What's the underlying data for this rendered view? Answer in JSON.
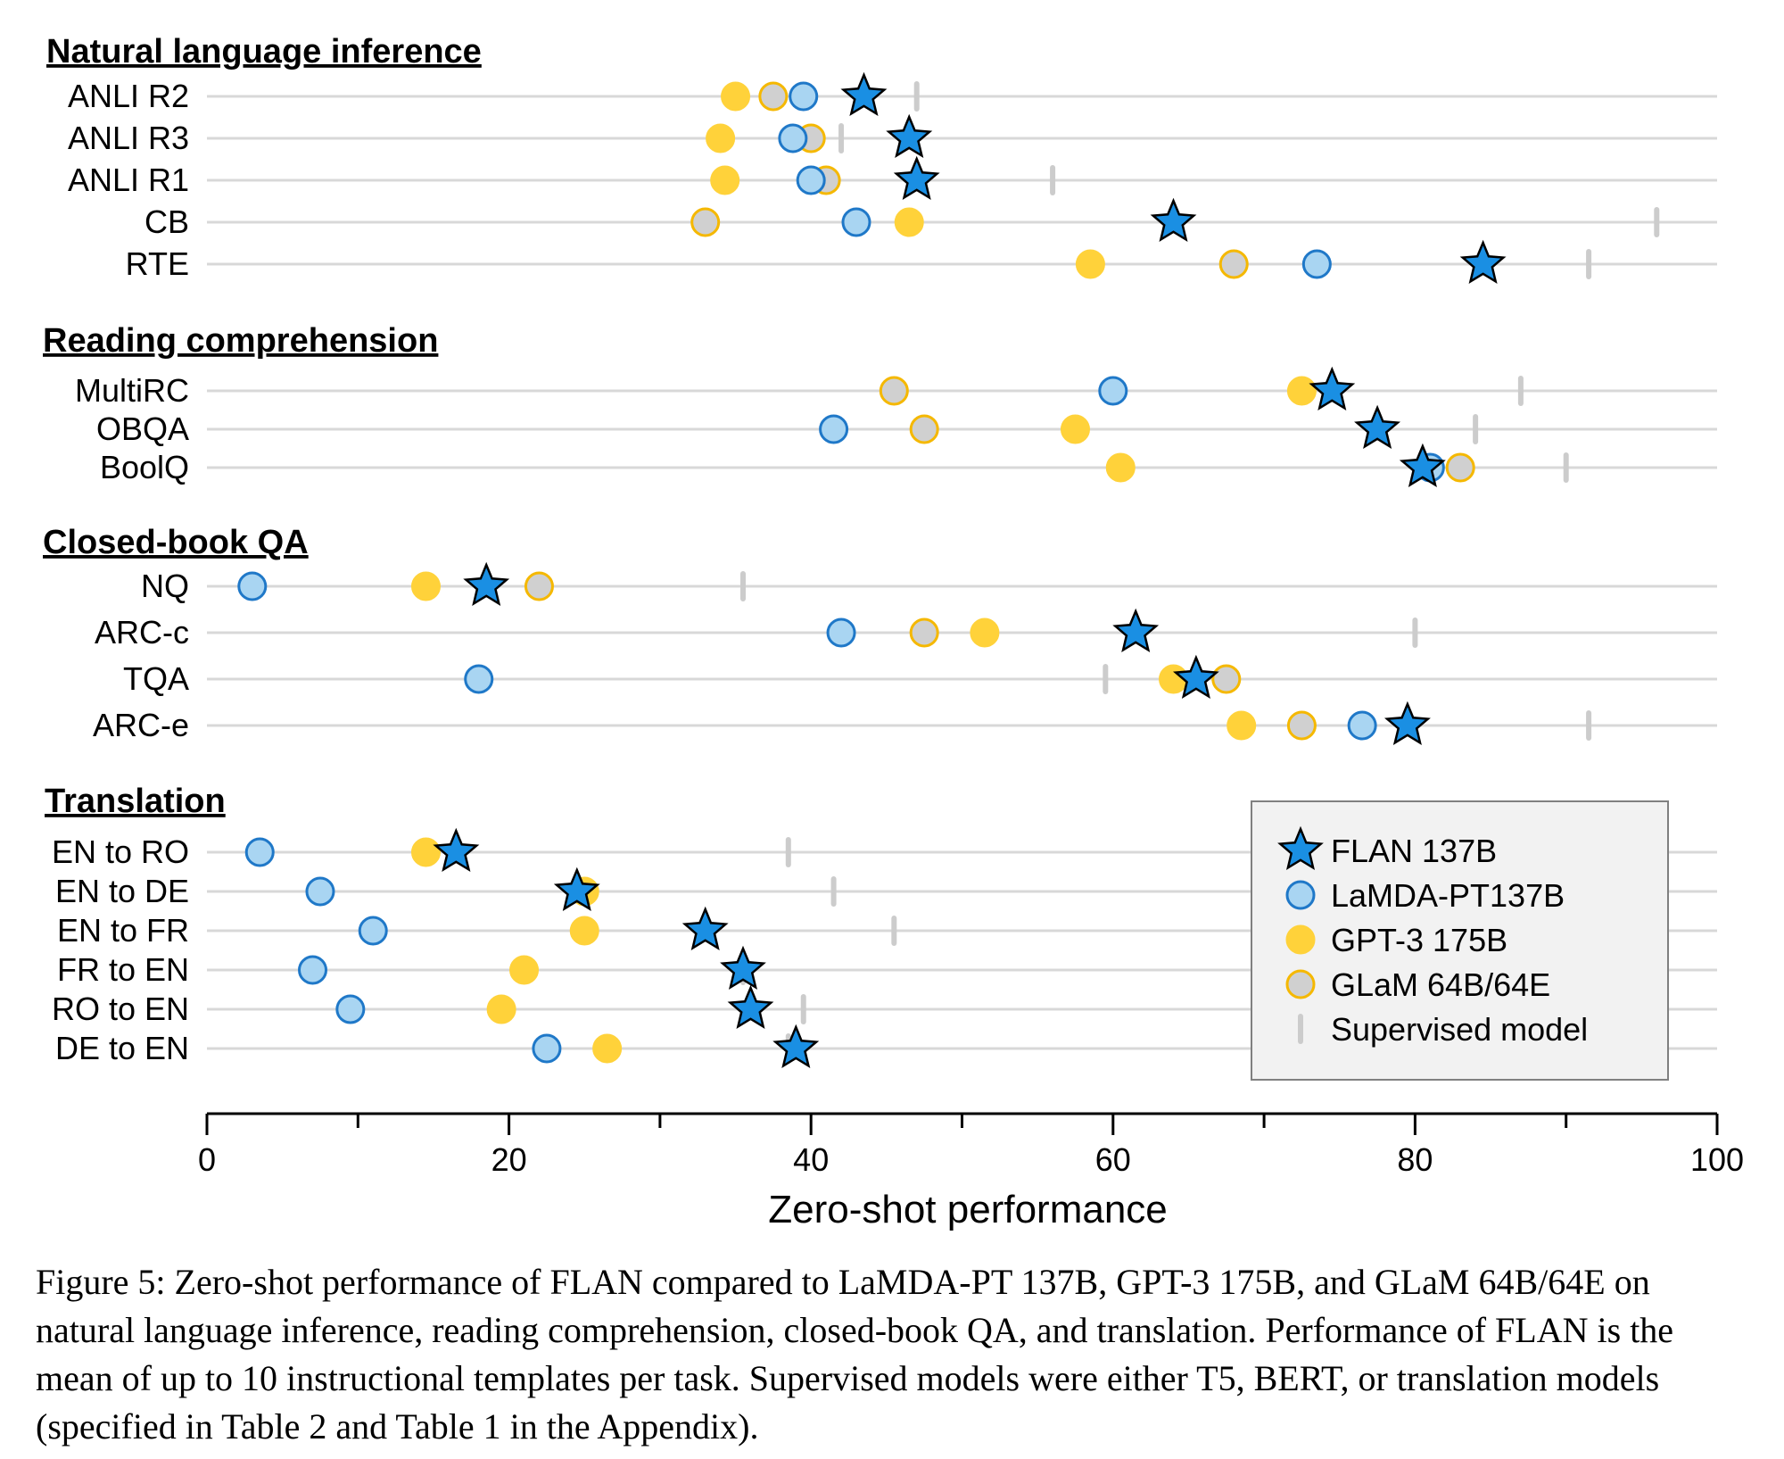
{
  "chart_data": {
    "type": "scatter",
    "xlabel": "Zero-shot performance",
    "xlim": [
      0,
      100
    ],
    "xticks": [
      0,
      20,
      40,
      60,
      80,
      100
    ],
    "legend_position": "bottom-right",
    "grid": false,
    "series": [
      {
        "name": "FLAN 137B",
        "marker": "star",
        "color": "#1a8fe3"
      },
      {
        "name": "LaMDA-PT137B",
        "marker": "circle",
        "color": "#a9d5f2",
        "edge": "#1f78c8"
      },
      {
        "name": "GPT-3 175B",
        "marker": "circle",
        "color": "#ffd23a",
        "edge": "#ffd23a"
      },
      {
        "name": "GLaM 64B/64E",
        "marker": "circle",
        "color": "#d0d0d0",
        "edge": "#f5b800"
      },
      {
        "name": "Supervised model",
        "marker": "tick",
        "color": "#cccccc"
      }
    ],
    "sections": [
      {
        "title": "Natural language inference",
        "rows": [
          {
            "label": "ANLI R2",
            "flan": 43.5,
            "lamda": 39.5,
            "gpt3": 35.0,
            "glam": 37.5,
            "supervised": 47.0
          },
          {
            "label": "ANLI R3",
            "flan": 46.5,
            "lamda": 38.8,
            "gpt3": 34.0,
            "glam": 40.0,
            "supervised": 42.0
          },
          {
            "label": "ANLI R1",
            "flan": 47.0,
            "lamda": 40.0,
            "gpt3": 34.3,
            "glam": 41.0,
            "supervised": 56.0
          },
          {
            "label": "CB",
            "flan": 64.0,
            "lamda": 43.0,
            "gpt3": 46.5,
            "glam": 33.0,
            "supervised": 96.0
          },
          {
            "label": "RTE",
            "flan": 84.5,
            "lamda": 73.5,
            "gpt3": 58.5,
            "glam": 68.0,
            "supervised": 91.5
          }
        ]
      },
      {
        "title": "Reading comprehension",
        "rows": [
          {
            "label": "MultiRC",
            "flan": 74.5,
            "lamda": 60.0,
            "gpt3": 72.5,
            "glam": 45.5,
            "supervised": 87.0
          },
          {
            "label": "OBQA",
            "flan": 77.5,
            "lamda": 41.5,
            "gpt3": 57.5,
            "glam": 47.5,
            "supervised": 84.0
          },
          {
            "label": "BoolQ",
            "flan": 80.5,
            "lamda": 81.0,
            "gpt3": 60.5,
            "glam": 83.0,
            "supervised": 90.0
          }
        ]
      },
      {
        "title": "Closed-book QA",
        "rows": [
          {
            "label": "NQ",
            "flan": 18.5,
            "lamda": 3.0,
            "gpt3": 14.5,
            "glam": 22.0,
            "supervised": 35.5
          },
          {
            "label": "ARC-c",
            "flan": 61.5,
            "lamda": 42.0,
            "gpt3": 51.5,
            "glam": 47.5,
            "supervised": 80.0
          },
          {
            "label": "TQA",
            "flan": 65.5,
            "lamda": 18.0,
            "gpt3": 64.0,
            "glam": 67.5,
            "supervised": 59.5
          },
          {
            "label": "ARC-e",
            "flan": 79.5,
            "lamda": 76.5,
            "gpt3": 68.5,
            "glam": 72.5,
            "supervised": 91.5
          }
        ]
      },
      {
        "title": "Translation",
        "rows": [
          {
            "label": "EN to RO",
            "flan": 16.5,
            "lamda": 3.5,
            "gpt3": 14.5,
            "glam": null,
            "supervised": 38.5
          },
          {
            "label": "EN to DE",
            "flan": 24.5,
            "lamda": 7.5,
            "gpt3": 25.0,
            "glam": null,
            "supervised": 41.5
          },
          {
            "label": "EN to FR",
            "flan": 33.0,
            "lamda": 11.0,
            "gpt3": 25.0,
            "glam": null,
            "supervised": 45.5
          },
          {
            "label": "FR to EN",
            "flan": 35.5,
            "lamda": 7.0,
            "gpt3": 21.0,
            "glam": null,
            "supervised": 35.5
          },
          {
            "label": "RO to EN",
            "flan": 36.0,
            "lamda": 9.5,
            "gpt3": 19.5,
            "glam": null,
            "supervised": 39.5
          },
          {
            "label": "DE to EN",
            "flan": 39.0,
            "lamda": 22.5,
            "gpt3": 26.5,
            "glam": null,
            "supervised": 38.5
          }
        ]
      }
    ]
  },
  "caption": "Figure 5: Zero-shot performance of FLAN compared to LaMDA-PT 137B, GPT-3 175B, and GLaM 64B/64E on natural language inference, reading comprehension, closed-book QA, and translation. Performance of FLAN is the mean of up to 10 instructional templates per task. Supervised models were either T5, BERT, or translation models (specified in Table 2 and Table 1 in the Appendix)."
}
